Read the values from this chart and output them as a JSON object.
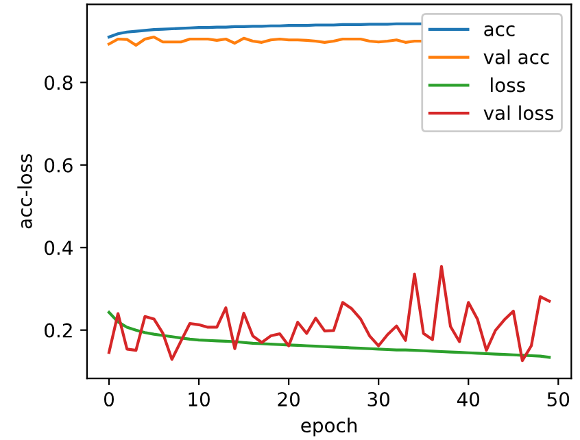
{
  "chart_data": {
    "type": "line",
    "xlabel": "epoch",
    "ylabel": "acc-loss",
    "x": [
      0,
      1,
      2,
      3,
      4,
      5,
      6,
      7,
      8,
      9,
      10,
      11,
      12,
      13,
      14,
      15,
      16,
      17,
      18,
      19,
      20,
      21,
      22,
      23,
      24,
      25,
      26,
      27,
      28,
      29,
      30,
      31,
      32,
      33,
      34,
      35,
      36,
      37,
      38,
      39,
      40,
      41,
      42,
      43,
      44,
      45,
      46,
      47,
      48,
      49
    ],
    "series": [
      {
        "name": "acc",
        "color": "#1f77b4",
        "values": [
          0.91,
          0.918,
          0.922,
          0.924,
          0.926,
          0.928,
          0.929,
          0.93,
          0.931,
          0.932,
          0.933,
          0.933,
          0.934,
          0.934,
          0.935,
          0.935,
          0.936,
          0.936,
          0.937,
          0.937,
          0.938,
          0.938,
          0.938,
          0.939,
          0.939,
          0.939,
          0.94,
          0.94,
          0.94,
          0.941,
          0.941,
          0.941,
          0.942,
          0.942,
          0.942,
          0.942,
          null,
          null,
          null,
          null,
          null,
          null,
          null,
          null,
          null,
          null,
          null,
          null,
          null,
          null
        ]
      },
      {
        "name": "val acc",
        "color": "#ff7f0e",
        "values": [
          0.893,
          0.905,
          0.904,
          0.89,
          0.905,
          0.91,
          0.898,
          0.898,
          0.898,
          0.905,
          0.905,
          0.905,
          0.902,
          0.905,
          0.895,
          0.907,
          0.9,
          0.897,
          0.903,
          0.905,
          0.903,
          0.903,
          0.902,
          0.9,
          0.897,
          0.9,
          0.905,
          0.905,
          0.905,
          0.9,
          0.898,
          0.9,
          0.903,
          0.897,
          0.9,
          0.9,
          null,
          null,
          null,
          null,
          null,
          null,
          null,
          null,
          null,
          null,
          null,
          null,
          null,
          null
        ]
      },
      {
        "name": " loss",
        "color": "#2ca02c",
        "values": [
          0.243,
          0.22,
          0.207,
          0.2,
          0.194,
          0.19,
          0.187,
          0.184,
          0.181,
          0.178,
          0.176,
          0.175,
          0.174,
          0.173,
          0.172,
          0.17,
          0.168,
          0.167,
          0.166,
          0.165,
          0.164,
          0.163,
          0.162,
          0.161,
          0.16,
          0.159,
          0.158,
          0.157,
          0.156,
          0.155,
          0.154,
          0.153,
          0.152,
          0.152,
          0.151,
          0.15,
          0.149,
          0.148,
          0.147,
          0.146,
          0.145,
          0.144,
          0.143,
          0.142,
          0.141,
          0.14,
          0.139,
          0.138,
          0.137,
          0.134
        ]
      },
      {
        "name": "val loss",
        "color": "#d62728",
        "values": [
          0.146,
          0.24,
          0.154,
          0.151,
          0.233,
          0.227,
          0.192,
          0.129,
          0.173,
          0.216,
          0.213,
          0.207,
          0.207,
          0.254,
          0.155,
          0.241,
          0.186,
          0.17,
          0.186,
          0.191,
          0.162,
          0.219,
          0.192,
          0.229,
          0.198,
          0.199,
          0.267,
          0.252,
          0.227,
          0.186,
          0.162,
          0.189,
          0.21,
          0.175,
          0.336,
          0.192,
          0.177,
          0.354,
          0.209,
          0.172,
          0.267,
          0.227,
          0.151,
          0.199,
          0.225,
          0.246,
          0.126,
          0.162,
          0.281,
          0.27
        ]
      }
    ],
    "xlim": [
      -2.45,
      51.45
    ],
    "ylim": [
      0.083,
      0.989
    ],
    "xticks": [
      0,
      10,
      20,
      30,
      40,
      50
    ],
    "yticks": [
      0.2,
      0.4,
      0.6,
      0.8
    ],
    "legend": "top right",
    "grid": false,
    "line_style": "solid",
    "marker": "none"
  }
}
